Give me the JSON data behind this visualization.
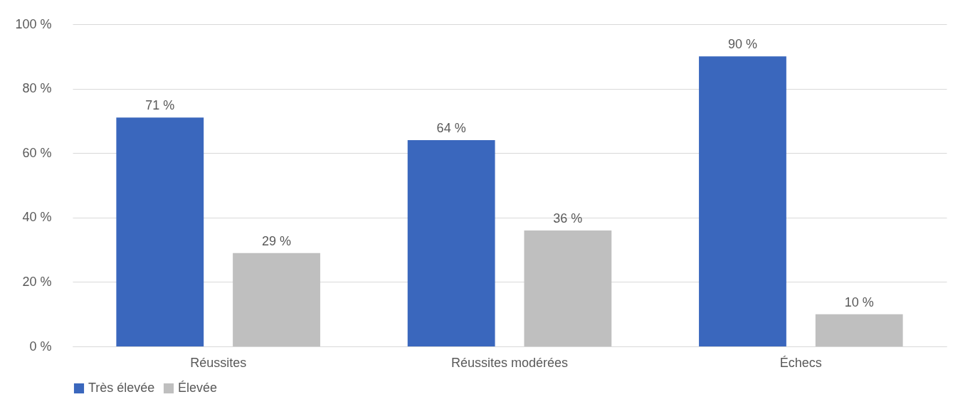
{
  "chart_data": {
    "type": "bar",
    "categories": [
      "Réussites",
      "Réussites modérées",
      "Échecs"
    ],
    "series": [
      {
        "name": "Très élevée",
        "color": "#3a67bd",
        "values": [
          71,
          64,
          90
        ],
        "value_labels": [
          "71 %",
          "64 %",
          "90 %"
        ]
      },
      {
        "name": "Élevée",
        "color": "#bfbfbf",
        "values": [
          29,
          36,
          10
        ],
        "value_labels": [
          "29 %",
          "36 %",
          "10 %"
        ]
      }
    ],
    "ylim": [
      0,
      100
    ],
    "yticks": [
      {
        "value": 0,
        "label": "0 %"
      },
      {
        "value": 20,
        "label": "20 %"
      },
      {
        "value": 40,
        "label": "40 %"
      },
      {
        "value": 60,
        "label": "60 %"
      },
      {
        "value": 80,
        "label": "80 %"
      },
      {
        "value": 100,
        "label": "100 %"
      }
    ],
    "grid": "y",
    "legend": "bottom"
  }
}
